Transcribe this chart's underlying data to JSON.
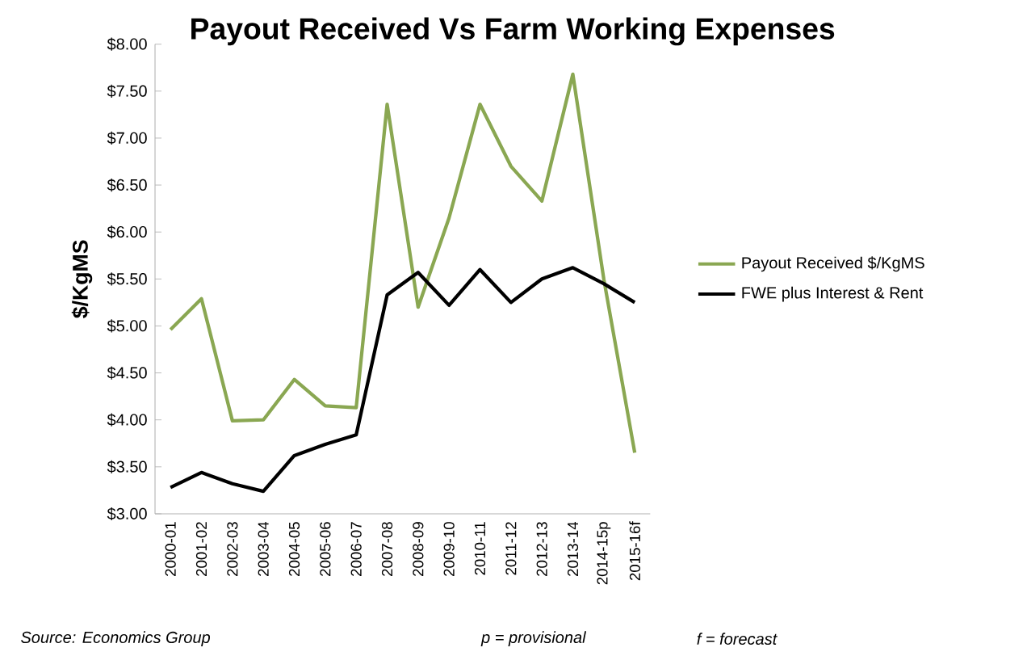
{
  "chart_data": {
    "type": "line",
    "title": "Payout Received Vs Farm Working Expenses",
    "ylabel": "$/KgMS",
    "categories": [
      "2000-01",
      "2001-02",
      "2002-03",
      "2003-04",
      "2004-05",
      "2005-06",
      "2006-07",
      "2007-08",
      "2008-09",
      "2009-10",
      "2010-11",
      "2011-12",
      "2012-13",
      "2013-14",
      "2014-15p",
      "2015-16f"
    ],
    "series": [
      {
        "name": "Payout Received $/KgMS",
        "color": "#8aa752",
        "values": [
          4.96,
          5.29,
          3.99,
          4.0,
          4.43,
          4.15,
          4.13,
          7.36,
          5.2,
          6.15,
          7.36,
          6.7,
          6.33,
          7.68,
          5.5,
          3.65
        ]
      },
      {
        "name": "FWE plus Interest & Rent",
        "color": "#000000",
        "values": [
          3.28,
          3.44,
          3.32,
          3.24,
          3.62,
          3.74,
          3.84,
          5.33,
          5.57,
          5.22,
          5.6,
          5.25,
          5.5,
          5.62,
          5.45,
          5.25
        ]
      }
    ],
    "ylim": [
      3.0,
      8.0
    ],
    "yticks": [
      {
        "value": 3.0,
        "label": "$3.00"
      },
      {
        "value": 3.5,
        "label": "$3.50"
      },
      {
        "value": 4.0,
        "label": "$4.00"
      },
      {
        "value": 4.5,
        "label": "$4.50"
      },
      {
        "value": 5.0,
        "label": "$5.00"
      },
      {
        "value": 5.5,
        "label": "$5.50"
      },
      {
        "value": 6.0,
        "label": "$6.00"
      },
      {
        "value": 6.5,
        "label": "$6.50"
      },
      {
        "value": 7.0,
        "label": "$7.00"
      },
      {
        "value": 7.5,
        "label": "$7.50"
      },
      {
        "value": 8.0,
        "label": "$8.00"
      }
    ],
    "legend": "right",
    "grid": false,
    "marker": "none",
    "line_style": "solid",
    "annotations": [
      "Source: Economics Group",
      "p = provisional",
      "f = forecast"
    ]
  }
}
